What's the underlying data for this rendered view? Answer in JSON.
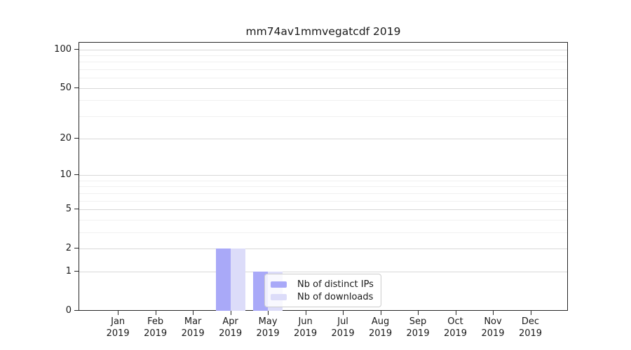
{
  "chart_data": {
    "type": "bar",
    "title": "mm74av1mmvegatcdf 2019",
    "categories": [
      "Jan 2019",
      "Feb 2019",
      "Mar 2019",
      "Apr 2019",
      "May 2019",
      "Jun 2019",
      "Jul 2019",
      "Aug 2019",
      "Sep 2019",
      "Oct 2019",
      "Nov 2019",
      "Dec 2019"
    ],
    "series": [
      {
        "name": "Nb of distinct IPs",
        "color": "#a9a9f8",
        "values": [
          0,
          0,
          0,
          2,
          1,
          0,
          0,
          0,
          0,
          0,
          0,
          0
        ]
      },
      {
        "name": "Nb of downloads",
        "color": "#dcdcf9",
        "values": [
          0,
          0,
          0,
          2,
          1,
          0,
          0,
          0,
          0,
          0,
          0,
          0
        ]
      }
    ],
    "xlabel": "",
    "ylabel": "",
    "y_scale": "log1p",
    "ylim": [
      0,
      114
    ],
    "y_major_ticks": [
      0,
      1,
      2,
      5,
      10,
      20,
      50,
      100
    ],
    "y_minor_gridlines": [
      3,
      4,
      6,
      7,
      8,
      9,
      30,
      40,
      60,
      70,
      80,
      90
    ],
    "grid": "horizontal",
    "legend_position": "inside-bottom-center-right"
  },
  "colors": {
    "background": "#ffffff",
    "major_grid": "#d8d8d8",
    "minor_grid": "#f0f0f0",
    "spine": "#262626",
    "text": "#1a1a1a",
    "legend_border": "#cccccc",
    "legend_bg": "rgba(255,255,255,0.8)"
  }
}
